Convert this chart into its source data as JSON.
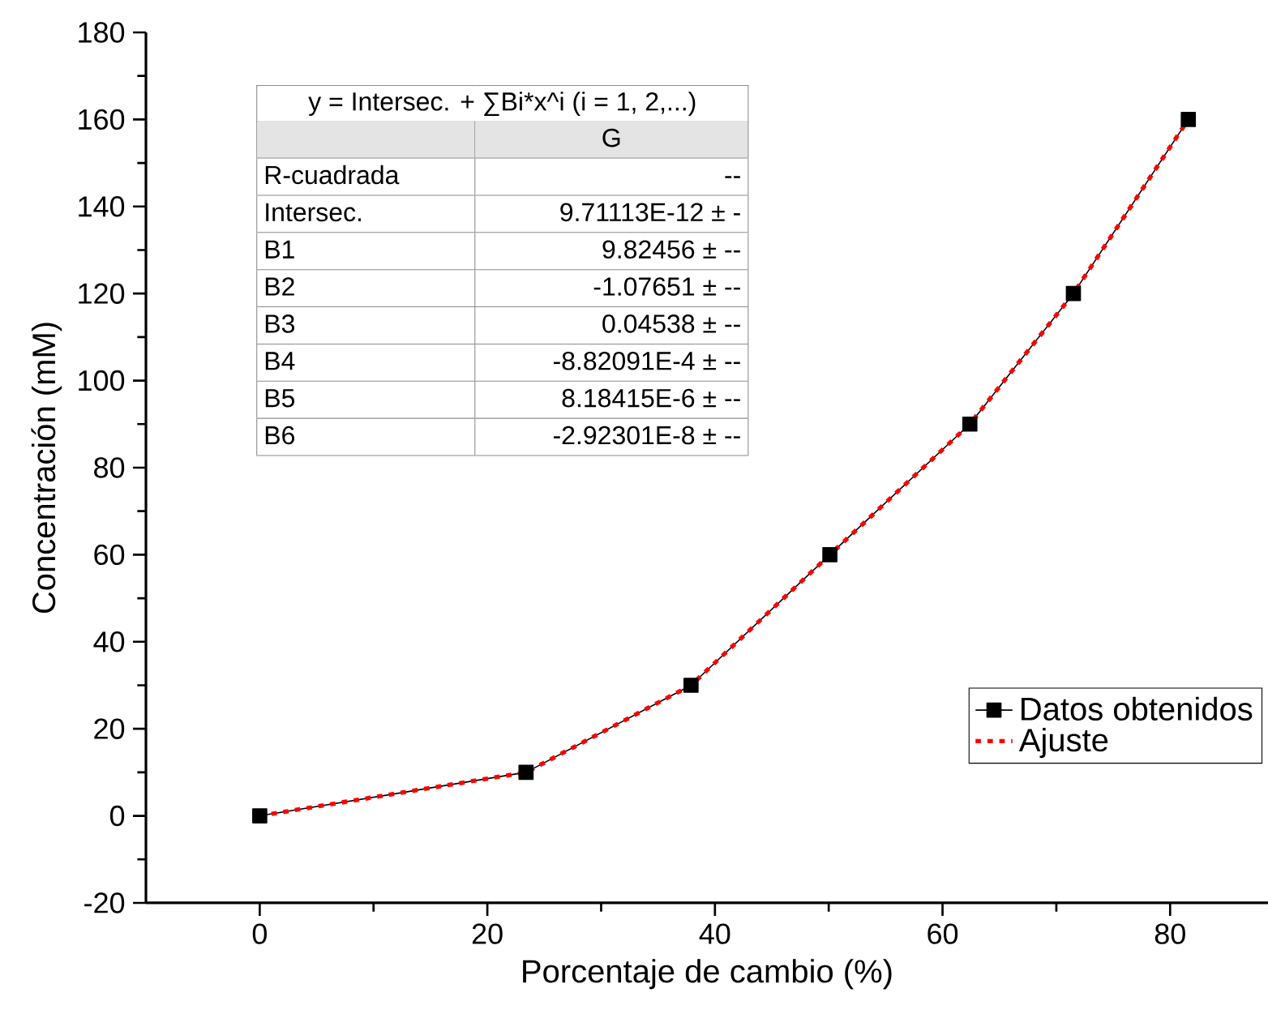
{
  "chart_data": {
    "type": "line",
    "xlabel": "Porcentaje de cambio (%)",
    "ylabel": "Concentración (mM)",
    "series": [
      {
        "name": "Datos obtenidos",
        "color": "#000000",
        "marker": "square",
        "line_style": "solid",
        "x": [
          0,
          23.4,
          37.9,
          50.1,
          62.4,
          71.5,
          81.6
        ],
        "values": [
          0,
          10,
          30,
          60,
          90,
          120,
          160
        ]
      },
      {
        "name": "Ajuste",
        "color": "#ff0000",
        "marker": "none",
        "line_style": "dotted",
        "x": [
          0,
          23.4,
          37.9,
          50.1,
          62.4,
          71.5,
          81.6
        ],
        "values": [
          0,
          10,
          30,
          60,
          90,
          120,
          160
        ]
      }
    ],
    "xlim": [
      -10,
      88.6
    ],
    "ylim": [
      -20,
      180
    ],
    "xticks": [
      0,
      20,
      40,
      60,
      80
    ],
    "yticks": [
      -20,
      0,
      20,
      40,
      60,
      80,
      100,
      120,
      140,
      160,
      180
    ],
    "legend": "bottom right",
    "grid": false,
    "annotations": [
      "y = Intersec. + ∑Bi*x^i (i = 1, 2,...)",
      "G",
      "R-cuadrada",
      "--",
      "Intersec.",
      "9.71113E-12 ± -",
      "B1",
      "9.82456 ± --",
      "B2",
      "-1.07651 ± --",
      "B3",
      "0.04538 ± --",
      "B4",
      "-8.82091E-4 ± --",
      "B5",
      "8.18415E-6 ± --",
      "B6",
      "-2.92301E-8 ± --"
    ]
  }
}
